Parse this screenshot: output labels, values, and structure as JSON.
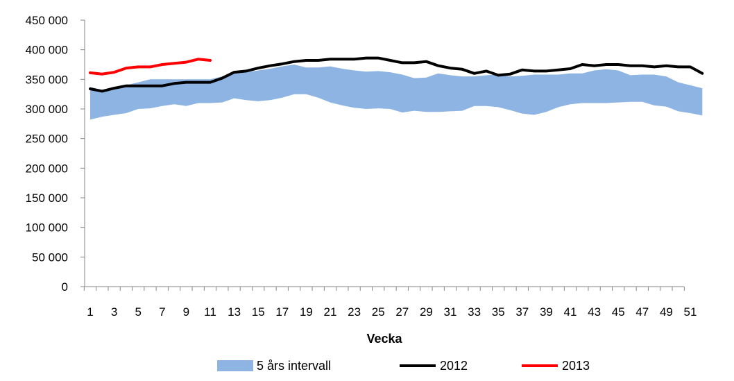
{
  "chart_data": {
    "type": "line",
    "title": "",
    "xlabel": "Vecka",
    "ylabel": "",
    "ylim": [
      0,
      450000
    ],
    "y_ticks": [
      0,
      50000,
      100000,
      150000,
      200000,
      250000,
      300000,
      350000,
      400000,
      450000
    ],
    "y_tick_labels": [
      "0",
      "50 000",
      "100 000",
      "150 000",
      "200 000",
      "250 000",
      "300 000",
      "350 000",
      "400 000",
      "450 000"
    ],
    "x_range": [
      1,
      52
    ],
    "x_ticks": [
      1,
      3,
      5,
      7,
      9,
      11,
      13,
      15,
      17,
      19,
      21,
      23,
      25,
      27,
      29,
      31,
      33,
      35,
      37,
      39,
      41,
      43,
      45,
      47,
      49,
      51
    ],
    "x_tick_labels": [
      "1",
      "3",
      "5",
      "7",
      "9",
      "11",
      "13",
      "15",
      "17",
      "19",
      "21",
      "23",
      "25",
      "27",
      "29",
      "31",
      "33",
      "35",
      "37",
      "39",
      "41",
      "43",
      "45",
      "47",
      "49",
      "51"
    ],
    "grid": false,
    "legend_position": "bottom",
    "legend": [
      "5 års intervall",
      "2012",
      "2013"
    ],
    "band": {
      "name": "5 års intervall",
      "color": "#8db4e2",
      "x": [
        1,
        2,
        3,
        4,
        5,
        6,
        7,
        8,
        9,
        10,
        11,
        12,
        13,
        14,
        15,
        16,
        17,
        18,
        19,
        20,
        21,
        22,
        23,
        24,
        25,
        26,
        27,
        28,
        29,
        30,
        31,
        32,
        33,
        34,
        35,
        36,
        37,
        38,
        39,
        40,
        41,
        42,
        43,
        44,
        45,
        46,
        47,
        48,
        49,
        50,
        51,
        52
      ],
      "lower": [
        282000,
        287000,
        290000,
        293000,
        300000,
        301000,
        305000,
        308000,
        305000,
        310000,
        310000,
        311000,
        318000,
        315000,
        313000,
        315000,
        319000,
        325000,
        325000,
        319000,
        311000,
        306000,
        302000,
        300000,
        301000,
        300000,
        294000,
        297000,
        295000,
        295000,
        296000,
        297000,
        305000,
        305000,
        303000,
        298000,
        292000,
        290000,
        295000,
        303000,
        308000,
        310000,
        310000,
        310000,
        311000,
        312000,
        312000,
        306000,
        304000,
        296000,
        293000,
        289000
      ],
      "upper": [
        337000,
        332000,
        335000,
        340000,
        345000,
        350000,
        350000,
        350000,
        350000,
        350000,
        350000,
        355000,
        360000,
        362000,
        365000,
        368000,
        372000,
        375000,
        370000,
        370000,
        372000,
        368000,
        365000,
        363000,
        364000,
        362000,
        358000,
        352000,
        353000,
        360000,
        357000,
        355000,
        355000,
        357000,
        358000,
        355000,
        356000,
        358000,
        358000,
        358000,
        360000,
        360000,
        365000,
        367000,
        365000,
        357000,
        358000,
        358000,
        355000,
        345000,
        340000,
        335000
      ]
    },
    "series": [
      {
        "name": "2012",
        "color": "#000000",
        "x": [
          1,
          2,
          3,
          4,
          5,
          6,
          7,
          8,
          9,
          10,
          11,
          12,
          13,
          14,
          15,
          16,
          17,
          18,
          19,
          20,
          21,
          22,
          23,
          24,
          25,
          26,
          27,
          28,
          29,
          30,
          31,
          32,
          33,
          34,
          35,
          36,
          37,
          38,
          39,
          40,
          41,
          42,
          43,
          44,
          45,
          46,
          47,
          48,
          49,
          50,
          51,
          52
        ],
        "values": [
          334000,
          330000,
          335000,
          339000,
          339000,
          339000,
          339000,
          343000,
          345000,
          345000,
          345000,
          352000,
          362000,
          364000,
          369000,
          373000,
          376000,
          380000,
          382000,
          382000,
          384000,
          384000,
          384000,
          386000,
          386000,
          382000,
          378000,
          378000,
          380000,
          373000,
          369000,
          367000,
          360000,
          364000,
          357000,
          359000,
          366000,
          364000,
          364000,
          366000,
          368000,
          375000,
          373000,
          375000,
          375000,
          373000,
          373000,
          371000,
          373000,
          371000,
          371000,
          360000
        ]
      },
      {
        "name": "2013",
        "color": "#ff0000",
        "x": [
          1,
          2,
          3,
          4,
          5,
          6,
          7,
          8,
          9,
          10,
          11
        ],
        "values": [
          361000,
          359000,
          362000,
          369000,
          371000,
          371000,
          375000,
          377000,
          379000,
          384000,
          382000
        ]
      }
    ]
  }
}
